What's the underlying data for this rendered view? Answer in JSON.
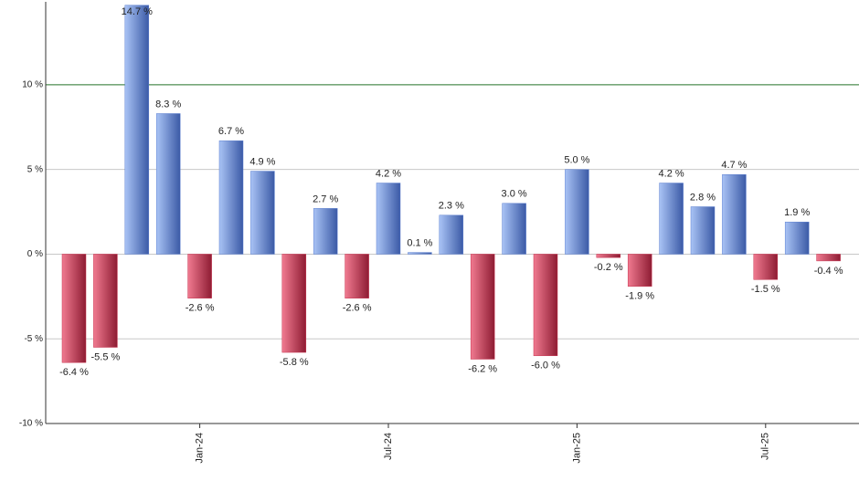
{
  "chart_data": {
    "type": "bar",
    "categories": [
      null,
      null,
      null,
      null,
      "Jan-24",
      null,
      null,
      null,
      null,
      null,
      "Jul-24",
      null,
      null,
      null,
      null,
      null,
      "Jan-25",
      null,
      null,
      null,
      null,
      null,
      "Jul-25",
      null,
      null
    ],
    "values": [
      -6.4,
      -5.5,
      14.7,
      8.3,
      -2.6,
      6.7,
      4.9,
      -5.8,
      2.7,
      -2.6,
      4.2,
      0.1,
      2.3,
      -6.2,
      3.0,
      -6.0,
      5.0,
      -0.2,
      -1.9,
      4.2,
      2.8,
      4.7,
      -1.5,
      1.9,
      -0.4
    ],
    "value_labels": [
      "-6.4 %",
      "-5.5 %",
      "14.7 %",
      "8.3 %",
      "-2.6 %",
      "6.7 %",
      "4.9 %",
      "-5.8 %",
      "2.7 %",
      "-2.6 %",
      "4.2 %",
      "0.1 %",
      "2.3 %",
      "-6.2 %",
      "3.0 %",
      "-6.0 %",
      "5.0 %",
      "-0.2 %",
      "-1.9 %",
      "4.2 %",
      "2.8 %",
      "4.7 %",
      "-1.5 %",
      "1.9 %",
      "-0.4 %"
    ],
    "positive_color": "#5b7fd0",
    "negative_color": "#c8334f",
    "ylim": [
      -10,
      14.9
    ],
    "yticks": [
      {
        "value": -10,
        "label": "-10 %"
      },
      {
        "value": -5,
        "label": "-5 %"
      },
      {
        "value": 0,
        "label": "0 %"
      },
      {
        "value": 5,
        "label": "5 %"
      },
      {
        "value": 10,
        "label": "10 %"
      }
    ],
    "grid": true,
    "reference_line": {
      "value": 10,
      "color": "#2e7d32"
    }
  }
}
